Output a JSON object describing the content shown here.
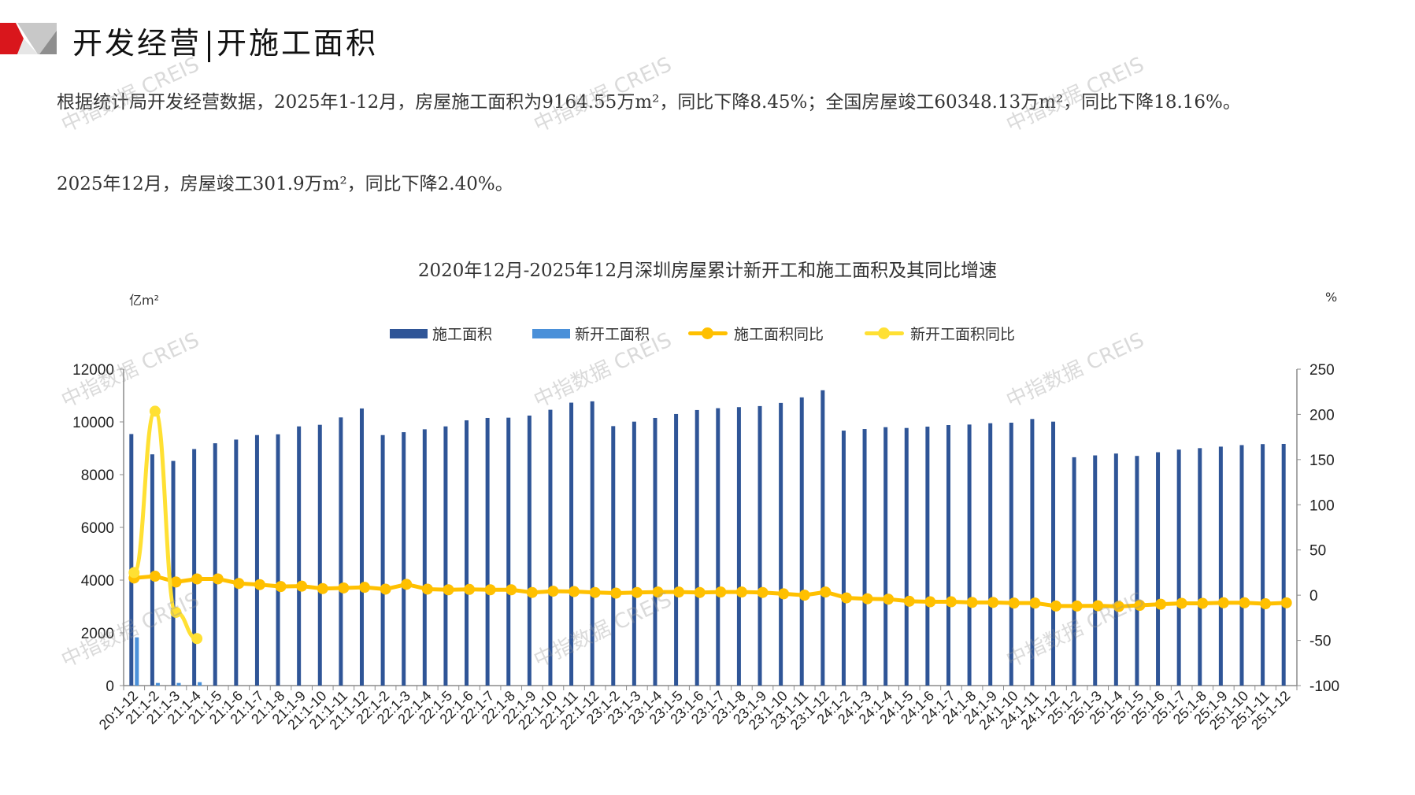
{
  "header": {
    "title_left": "开发经营",
    "title_right": "开施工面积"
  },
  "paragraphs": [
    "根据统计局开发经营数据，2025年1-12月，房屋施工面积为9164.55万m²，同比下降8.45%；全国房屋竣工60348.13万m²，同比下降18.16%。",
    "2025年12月，房屋竣工301.9万m²，同比下降2.40%。"
  ],
  "watermark": "中指数据 CREIS",
  "colors": {
    "construction": "#2F5597",
    "new_start": "#4A90D9",
    "construction_yoy": "#FFC000",
    "new_start_yoy": "#FFE033",
    "logo_red": "#D9161C",
    "logo_gray": "#9E9E9E"
  },
  "chart_data": {
    "type": "bar",
    "title": "2020年12月-2025年12月深圳房屋累计新开工和施工面积及其同比增速",
    "ylabel": "亿m²",
    "y2label": "%",
    "ylim": [
      0,
      12000
    ],
    "y2lim": [
      -100,
      250
    ],
    "yticks": [
      "0",
      "2000",
      "4000",
      "6000",
      "8000",
      "10000",
      "12000"
    ],
    "y2ticks": [
      "-100",
      "-50",
      "0",
      "50",
      "100",
      "150",
      "200",
      "250"
    ],
    "legend_position": "top-center",
    "grid": false,
    "categories": [
      "20:1-12",
      "21:1-2",
      "21:1-3",
      "21:1-4",
      "21:1-5",
      "21:1-6",
      "21:1-7",
      "21:1-8",
      "21:1-9",
      "21:1-10",
      "21:1-11",
      "21:1-12",
      "22:1-2",
      "22:1-3",
      "22:1-4",
      "22:1-5",
      "22:1-6",
      "22:1-7",
      "22:1-8",
      "22:1-9",
      "22:1-10",
      "22:1-11",
      "22:1-12",
      "23:1-2",
      "23:1-3",
      "23:1-4",
      "23:1-5",
      "23:1-6",
      "23:1-7",
      "23:1-8",
      "23:1-9",
      "23:1-10",
      "23:1-11",
      "23:1-12",
      "24:1-2",
      "24:1-3",
      "24:1-4",
      "24:1-5",
      "24:1-6",
      "24:1-7",
      "24:1-8",
      "24:1-9",
      "24:1-10",
      "24:1-11",
      "24:1-12",
      "25:1-2",
      "25:1-3",
      "25:1-4",
      "25:1-5",
      "25:1-6",
      "25:1-7",
      "25:1-8",
      "25:1-9",
      "25:1-10",
      "25:1-11",
      "25:1-12"
    ],
    "series": [
      {
        "name": "施工面积",
        "kind": "bar",
        "axis": "left",
        "values": [
          9540,
          8770,
          8520,
          8970,
          9190,
          9330,
          9500,
          9530,
          9830,
          9890,
          10170,
          10510,
          9500,
          9610,
          9720,
          9830,
          10060,
          10150,
          10160,
          10240,
          10460,
          10730,
          10780,
          9840,
          10010,
          10150,
          10300,
          10450,
          10520,
          10560,
          10600,
          10720,
          10930,
          11200,
          9670,
          9730,
          9800,
          9770,
          9820,
          9880,
          9900,
          9950,
          9970,
          10110,
          10010,
          8660,
          8730,
          8800,
          8710,
          8850,
          8950,
          9005,
          9062,
          9120,
          9158,
          9164.55
        ]
      },
      {
        "name": "新开工面积",
        "kind": "bar",
        "axis": "left",
        "values": [
          1830,
          100,
          100,
          130,
          null,
          null,
          null,
          null,
          null,
          null,
          null,
          null,
          null,
          null,
          null,
          null,
          null,
          null,
          null,
          null,
          null,
          null,
          null,
          null,
          null,
          null,
          null,
          null,
          null,
          null,
          null,
          null,
          null,
          null,
          null,
          null,
          null,
          null,
          null,
          null,
          null,
          null,
          null,
          null,
          null,
          null,
          null,
          null,
          null,
          null,
          null,
          null,
          null,
          null,
          null,
          null
        ]
      },
      {
        "name": "施工面积同比",
        "kind": "line",
        "axis": "right",
        "values": [
          19,
          21,
          14.6,
          18,
          18,
          13,
          11.7,
          9.6,
          10,
          7.3,
          8,
          8.7,
          6.7,
          12,
          6.7,
          6,
          6.4,
          6,
          6,
          3,
          4.4,
          4,
          3,
          2.3,
          3,
          3.5,
          3.5,
          3,
          3.5,
          3.5,
          3,
          1.5,
          0,
          3.5,
          -3,
          -4,
          -4.4,
          -6.7,
          -7.3,
          -7.3,
          -8,
          -8,
          -8.7,
          -8.7,
          -12,
          -12,
          -11.7,
          -12.5,
          -11.2,
          -10,
          -9,
          -9,
          -8.4,
          -8.4,
          -9.5,
          -8.45
        ]
      },
      {
        "name": "新开工面积同比",
        "kind": "line",
        "axis": "right",
        "values": [
          25,
          203.5,
          -19,
          -48,
          null,
          null,
          null,
          null,
          null,
          null,
          null,
          null,
          null,
          null,
          null,
          null,
          null,
          null,
          null,
          null,
          null,
          null,
          null,
          null,
          null,
          null,
          null,
          null,
          null,
          null,
          null,
          null,
          null,
          null,
          null,
          null,
          null,
          null,
          null,
          null,
          null,
          null,
          null,
          null,
          null,
          null,
          null,
          null,
          null,
          null,
          null,
          null,
          null,
          null,
          null,
          null
        ]
      }
    ]
  }
}
